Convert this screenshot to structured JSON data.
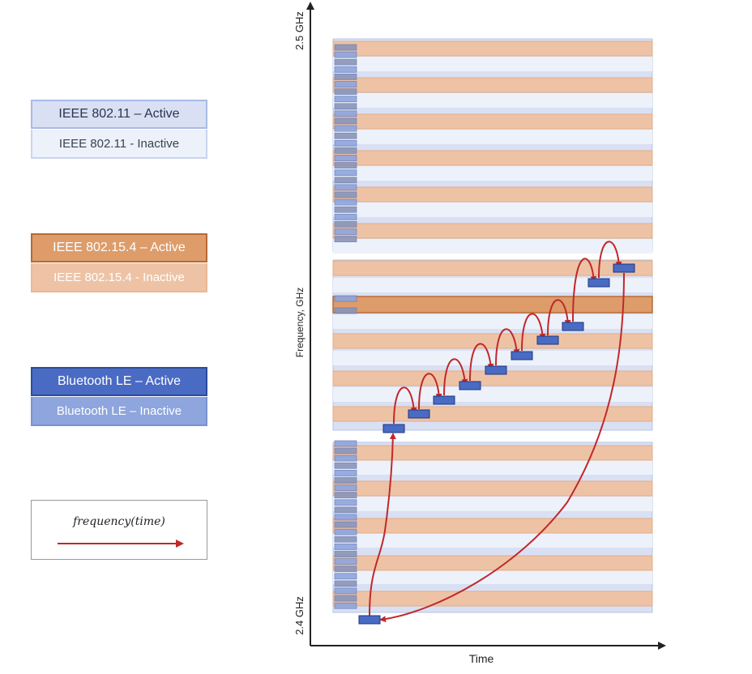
{
  "legend": {
    "wifi_active": "IEEE 802.11 – Active",
    "wifi_inactive": "IEEE 802.11 - Inactive",
    "zigbee_active": "IEEE 802.15.4 – Active",
    "zigbee_inactive": "IEEE 802.15.4 - Inactive",
    "ble_active": "Bluetooth LE – Active",
    "ble_inactive": "Bluetooth LE – Inactive",
    "function_label": "frequency(time)"
  },
  "axes": {
    "y_label": "Frequency, GHz",
    "x_label": "Time",
    "y_top_tick": "2.5 GHz",
    "y_bottom_tick": "2.4 GHz"
  },
  "colors": {
    "wifi_active": "#d9e0f3",
    "wifi_inactive": "#edf1fa",
    "zigbee_active": "#dd9c6a",
    "zigbee_inactive": "#eec3a5",
    "ble_active": "#4a6bc3",
    "ble_inactive": "#8ea5dd",
    "hop_arrow": "#c0282a"
  },
  "hop_sequence_count": 13
}
